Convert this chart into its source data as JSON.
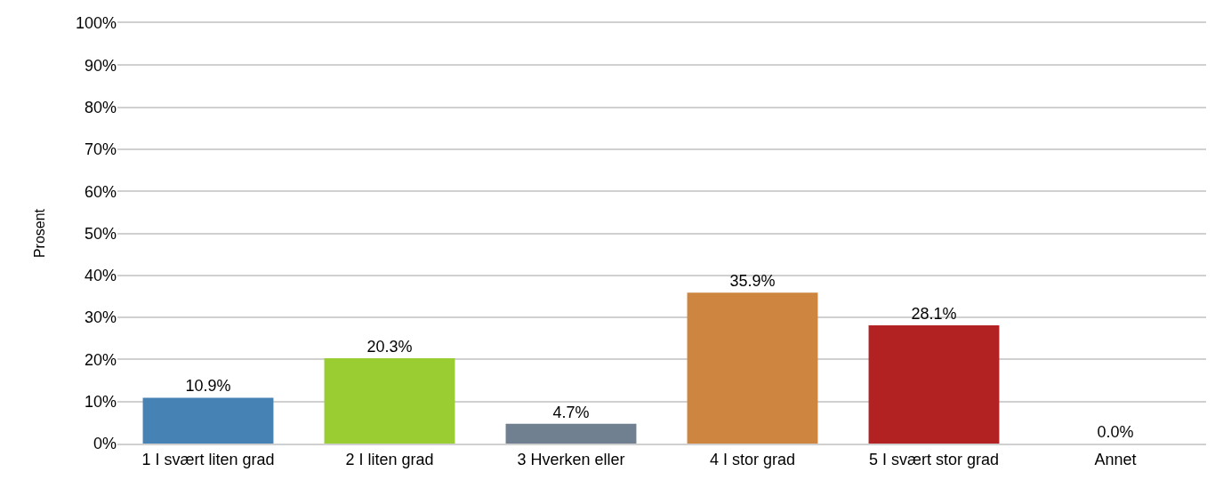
{
  "chart_data": {
    "type": "bar",
    "ylabel": "Prosent",
    "categories": [
      "1 I svært liten grad",
      "2 I liten grad",
      "3 Hverken eller",
      "4 I stor grad",
      "5 I svært stor grad",
      "Annet"
    ],
    "values": [
      10.9,
      20.3,
      4.7,
      35.9,
      28.1,
      0.0
    ],
    "value_labels": [
      "10.9%",
      "20.3%",
      "4.7%",
      "35.9%",
      "28.1%",
      "0.0%"
    ],
    "colors": [
      "#4682b4",
      "#9acd32",
      "#708090",
      "#cd853f",
      "#b22222",
      "#ffa500"
    ],
    "ylim": [
      0,
      100
    ],
    "yticks": [
      {
        "value": 0,
        "label": "0%"
      },
      {
        "value": 10,
        "label": "10%"
      },
      {
        "value": 20,
        "label": "20%"
      },
      {
        "value": 30,
        "label": "30%"
      },
      {
        "value": 40,
        "label": "40%"
      },
      {
        "value": 50,
        "label": "50%"
      },
      {
        "value": 60,
        "label": "60%"
      },
      {
        "value": 70,
        "label": "70%"
      },
      {
        "value": 80,
        "label": "80%"
      },
      {
        "value": 90,
        "label": "90%"
      },
      {
        "value": 100,
        "label": "100%"
      }
    ],
    "grid": "y"
  }
}
